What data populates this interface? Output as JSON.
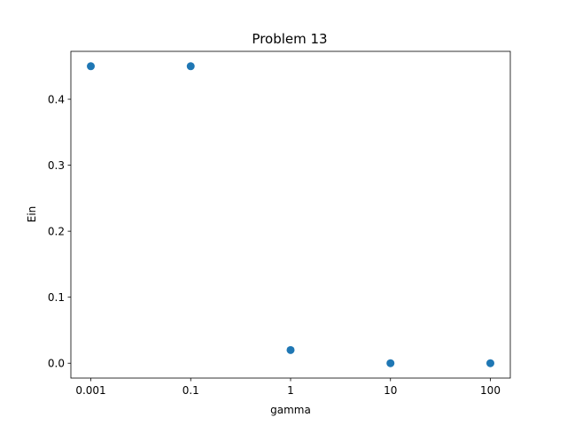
{
  "chart_data": {
    "type": "scatter",
    "title": "Problem 13",
    "xlabel": "gamma",
    "ylabel": "Ein",
    "x_categories": [
      "0.001",
      "0.1",
      "1",
      "10",
      "100"
    ],
    "y_ticks": [
      0.0,
      0.1,
      0.2,
      0.3,
      0.4
    ],
    "y_tick_labels": [
      "0.0",
      "0.1",
      "0.2",
      "0.3",
      "0.4"
    ],
    "ylim": [
      -0.0225,
      0.4725
    ],
    "series": [
      {
        "points": [
          {
            "x": "0.001",
            "y": 0.45
          },
          {
            "x": "0.1",
            "y": 0.45
          },
          {
            "x": "1",
            "y": 0.02
          },
          {
            "x": "10",
            "y": 0.0
          },
          {
            "x": "100",
            "y": 0.0
          }
        ]
      }
    ],
    "marker_color": "#1f77b4",
    "grid": false,
    "legend": "none"
  }
}
